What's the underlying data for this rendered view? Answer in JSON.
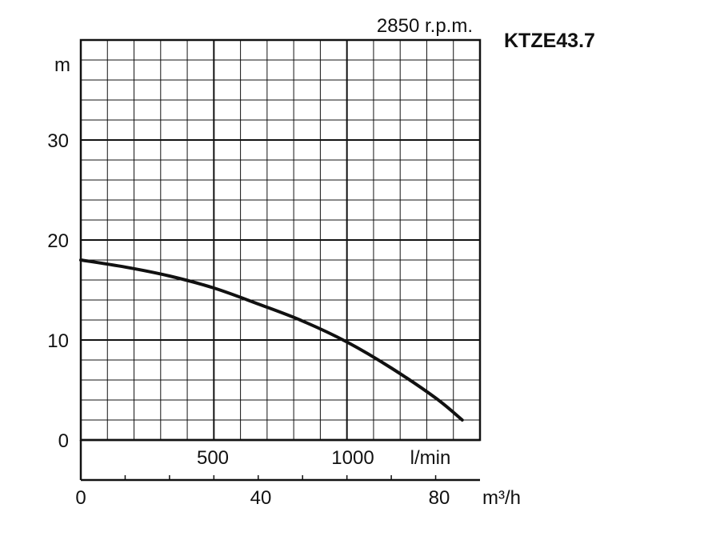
{
  "chart_data": {
    "type": "line",
    "title": "KTZE43.7",
    "subtitle": "2850 r.p.m.",
    "ylabel": "m",
    "xlabel_lmin": "l/min",
    "xlabel_m3h": "m³/h",
    "ylim": [
      0,
      40
    ],
    "xlim_m3h": [
      0,
      90
    ],
    "y_ticks": [
      "0",
      "10",
      "20",
      "30"
    ],
    "x_ticks_lmin": [
      "500",
      "1000"
    ],
    "x_ticks_m3h": [
      "0",
      "40",
      "80"
    ],
    "grid": true,
    "series": [
      {
        "x": [
          0,
          10,
          20,
          30,
          40,
          50,
          60,
          70,
          80,
          86
        ],
        "y": [
          18,
          17.3,
          16.4,
          15.2,
          13.6,
          11.9,
          9.8,
          7.2,
          4.2,
          2
        ]
      }
    ]
  }
}
